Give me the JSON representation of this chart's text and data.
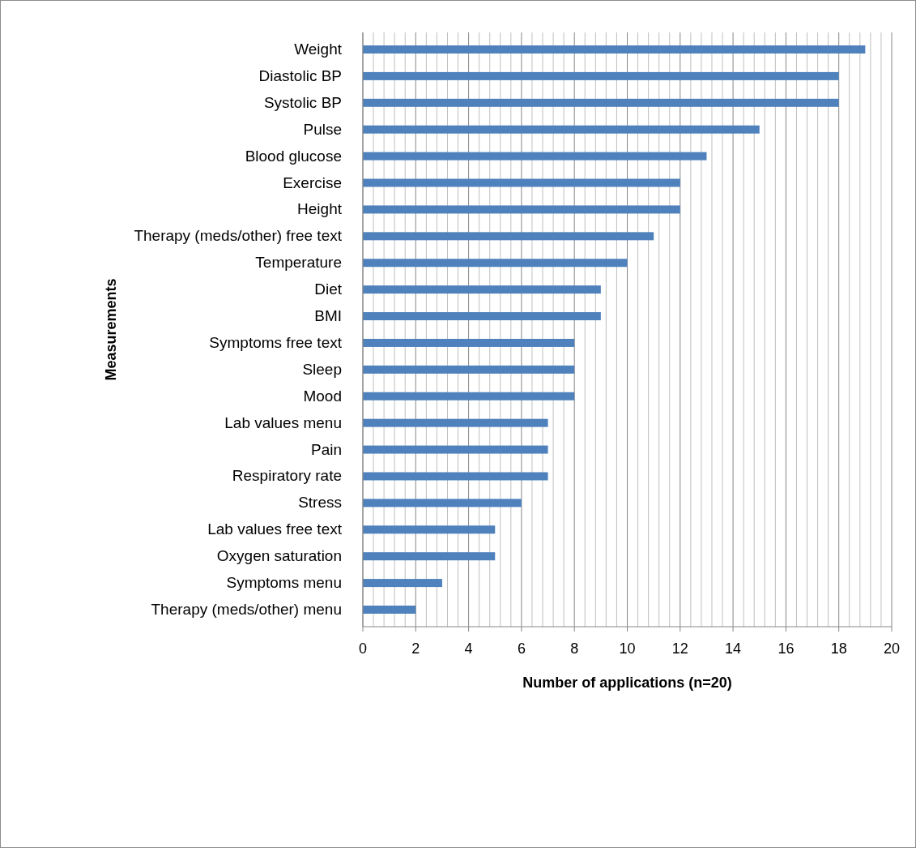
{
  "chart_data": {
    "type": "bar",
    "orientation": "horizontal",
    "xlabel": "Number of applications (n=20)",
    "ylabel": "Measurements",
    "categories": [
      "Weight",
      "Diastolic BP",
      "Systolic BP",
      "Pulse",
      "Blood glucose",
      "Exercise",
      "Height",
      "Therapy (meds/other) free text",
      "Temperature",
      "Diet",
      "BMI",
      "Symptoms free text",
      "Sleep",
      "Mood",
      "Lab values menu",
      "Pain",
      "Respiratory rate",
      "Stress",
      "Lab values free text",
      "Oxygen saturation",
      "Symptoms menu",
      "Therapy (meds/other) menu"
    ],
    "values": [
      19,
      18,
      18,
      15,
      13,
      12,
      12,
      11,
      10,
      9,
      9,
      8,
      8,
      8,
      7,
      7,
      7,
      6,
      5,
      5,
      3,
      2
    ],
    "color": "#4f81bd",
    "xlim": [
      0,
      20
    ],
    "xticks": [
      0,
      {
        "value": 0.4,
        "label": null
      },
      {
        "value": 0.8,
        "label": null
      },
      {
        "value": 1.2,
        "label": null
      },
      {
        "value": 1.6,
        "label": null
      },
      2,
      {
        "value": 2.4,
        "label": null
      },
      {
        "value": 2.8,
        "label": null
      },
      {
        "value": 3.2,
        "label": null
      },
      {
        "value": 3.6,
        "label": null
      },
      4,
      {
        "value": 4.4,
        "label": null
      },
      {
        "value": 4.8,
        "label": null
      },
      {
        "value": 5.2,
        "label": null
      },
      {
        "value": 5.6,
        "label": null
      },
      6,
      {
        "value": 6.4,
        "label": null
      },
      {
        "value": 6.8,
        "label": null
      },
      {
        "value": 7.2,
        "label": null
      },
      {
        "value": 7.6,
        "label": null
      },
      8,
      {
        "value": 8.4,
        "label": null
      },
      {
        "value": 8.8,
        "label": null
      },
      {
        "value": 9.2,
        "label": null
      },
      {
        "value": 9.6,
        "label": null
      },
      10,
      {
        "value": 10.4,
        "label": null
      },
      {
        "value": 10.8,
        "label": null
      },
      {
        "value": 11.2,
        "label": null
      },
      {
        "value": 11.6,
        "label": null
      },
      12,
      {
        "value": 12.4,
        "label": null
      },
      {
        "value": 12.8,
        "label": null
      },
      {
        "value": 13.2,
        "label": null
      },
      {
        "value": 13.6,
        "label": null
      },
      14,
      {
        "value": 14.4,
        "label": null
      },
      {
        "value": 14.8,
        "label": null
      },
      {
        "value": 15.2,
        "label": null
      },
      {
        "value": 15.6,
        "label": null
      },
      16,
      {
        "value": 16.4,
        "label": null
      },
      {
        "value": 16.8,
        "label": null
      },
      {
        "value": 17.2,
        "label": null
      },
      {
        "value": 17.6,
        "label": null
      },
      18,
      {
        "value": 18.4,
        "label": null
      },
      {
        "value": 18.8,
        "label": null
      },
      {
        "value": 19.2,
        "label": null
      },
      {
        "value": 19.6,
        "label": null
      },
      20
    ],
    "grid": "x"
  }
}
